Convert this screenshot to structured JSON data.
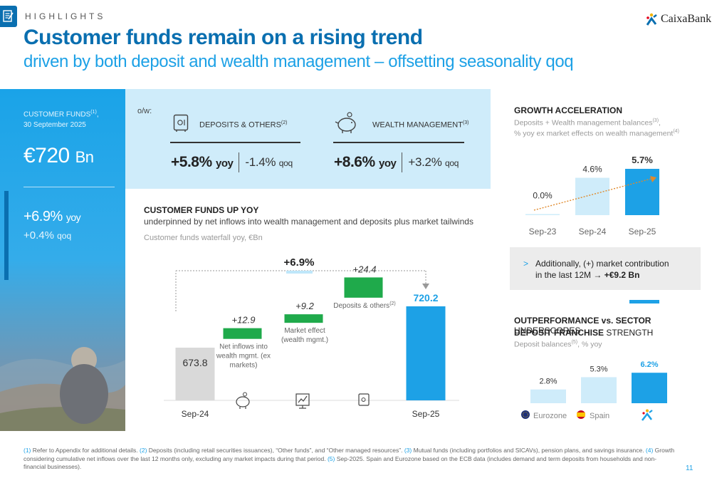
{
  "header": {
    "section": "HIGHLIGHTS",
    "title": "Customer funds remain on a rising trend",
    "subtitle": "driven by both deposit and wealth management – offsetting seasonality qoq",
    "brand": "CaixaBank"
  },
  "customer_funds": {
    "label_line1": "CUSTOMER FUNDS",
    "label_ref": "(1)",
    "label_line2": "30 September 2025",
    "value": "€720",
    "unit": "Bn",
    "yoy_value": "+6.9%",
    "yoy_label": "yoy",
    "qoq_value": "+0.4%",
    "qoq_label": "qoq"
  },
  "breakdown": {
    "ow_label": "o/w:",
    "deposits": {
      "title": "DEPOSITS & OTHERS",
      "ref": "(2)",
      "yoy_value": "+5.8%",
      "yoy_label": "yoy",
      "qoq_value": "-1.4%",
      "qoq_label": "qoq"
    },
    "wealth": {
      "title": "WEALTH MANAGEMENT",
      "ref": "(3)",
      "yoy_value": "+8.6%",
      "yoy_label": "yoy",
      "qoq_value": "+3.2%",
      "qoq_label": "qoq"
    }
  },
  "waterfall": {
    "title": "CUSTOMER FUNDS UP YOY",
    "subtitle": "underpinned by net inflows into wealth management and deposits plus market tailwinds",
    "caption": "Customer funds waterfall yoy, €Bn",
    "growth_label": "+6.9%",
    "footnote_ref": "(2)"
  },
  "growth": {
    "title": "GROWTH ACCELERATION",
    "subtitle_line1": "Deposits + Wealth management balances",
    "subtitle_ref1": "(3)",
    "subtitle_line2": "% yoy ex market effects on wealth management",
    "subtitle_ref2": "(4)",
    "note_arrow": ">",
    "note_line1": "Additionally, (+) market contribution",
    "note_line2_prefix": "in the last 12M",
    "note_line2_value": "+€9.2 Bn"
  },
  "outperformance": {
    "title_bold1": "OUTPERFORMANCE vs. SECTOR",
    "title_rest1": " UNDERSCORES",
    "title_bold2": "DEPOSIT FRANCHISE",
    "title_rest2": " STRENGTH",
    "subtitle": "Deposit balances",
    "subtitle_ref": "(5)",
    "subtitle_rest": ", % yoy"
  },
  "chart_data": [
    {
      "type": "bar",
      "subtype": "waterfall",
      "title": "Customer funds waterfall yoy, €Bn",
      "categories": [
        "Sep-24",
        "Net inflows into wealth mgmt. (ex markets)",
        "Market effect (wealth mgmt.)",
        "Deposits & others",
        "Sep-25"
      ],
      "values": [
        673.8,
        12.9,
        9.2,
        24.4,
        720.2
      ],
      "value_labels": [
        "673.8",
        "+12.9",
        "+9.2",
        "+24.4",
        "720.2"
      ],
      "bar_kinds": [
        "total",
        "delta",
        "delta",
        "delta",
        "total"
      ],
      "x_axis_labels": [
        "Sep-24",
        "",
        "",
        "",
        "Sep-25"
      ],
      "inline_labels": [
        "",
        "Net inflows into wealth mgmt. (ex markets)",
        "Market effect (wealth mgmt.)",
        "Deposits & others",
        ""
      ],
      "colors": {
        "start": "#d9d9d9",
        "delta": "#1faa4b",
        "end": "#1da1e6"
      }
    },
    {
      "type": "bar",
      "title": "Deposits + Wealth management balances, % yoy ex market effects on wealth management",
      "categories": [
        "Sep-23",
        "Sep-24",
        "Sep-25"
      ],
      "values": [
        0.0,
        4.6,
        5.7
      ],
      "value_labels": [
        "0.0%",
        "4.6%",
        "5.7%"
      ],
      "ylim": [
        0,
        6
      ],
      "trend_arrow": true,
      "colors": {
        "normal": "#cfecfa",
        "highlight": "#1da1e6"
      }
    },
    {
      "type": "bar",
      "title": "Deposit balances, % yoy",
      "categories": [
        "Eurozone",
        "Spain",
        "CaixaBank"
      ],
      "values": [
        2.8,
        5.3,
        6.2
      ],
      "value_labels": [
        "2.8%",
        "5.3%",
        "6.2%"
      ],
      "legend": [
        "Eurozone",
        "Spain"
      ],
      "colors": {
        "normal": "#cfecfa",
        "highlight": "#1da1e6"
      }
    }
  ],
  "footnotes": [
    {
      "ref": "(1)",
      "text": " Refer to Appendix for additional details. "
    },
    {
      "ref": "(2)",
      "text": " Deposits (including retail securities issuances), “Other funds”, and “Other managed resources”. "
    },
    {
      "ref": "(3)",
      "text": " Mutual funds (including portfolios and SICAVs), pension plans, and savings insurance. "
    },
    {
      "ref": "(4)",
      "text": " Growth considering cumulative net inflows over the last 12 months only, excluding any market impacts during that period. "
    },
    {
      "ref": "(5)",
      "text": " Sep-2025. Spain and Eurozone based on the ECB data (includes demand and term deposits from households and non-financial businesses)."
    }
  ],
  "page_number": "11",
  "colors": {
    "primary": "#0a6fb0",
    "accent": "#1da1e6",
    "light": "#cfecfa",
    "green": "#1faa4b",
    "grey": "#d9d9d9"
  }
}
